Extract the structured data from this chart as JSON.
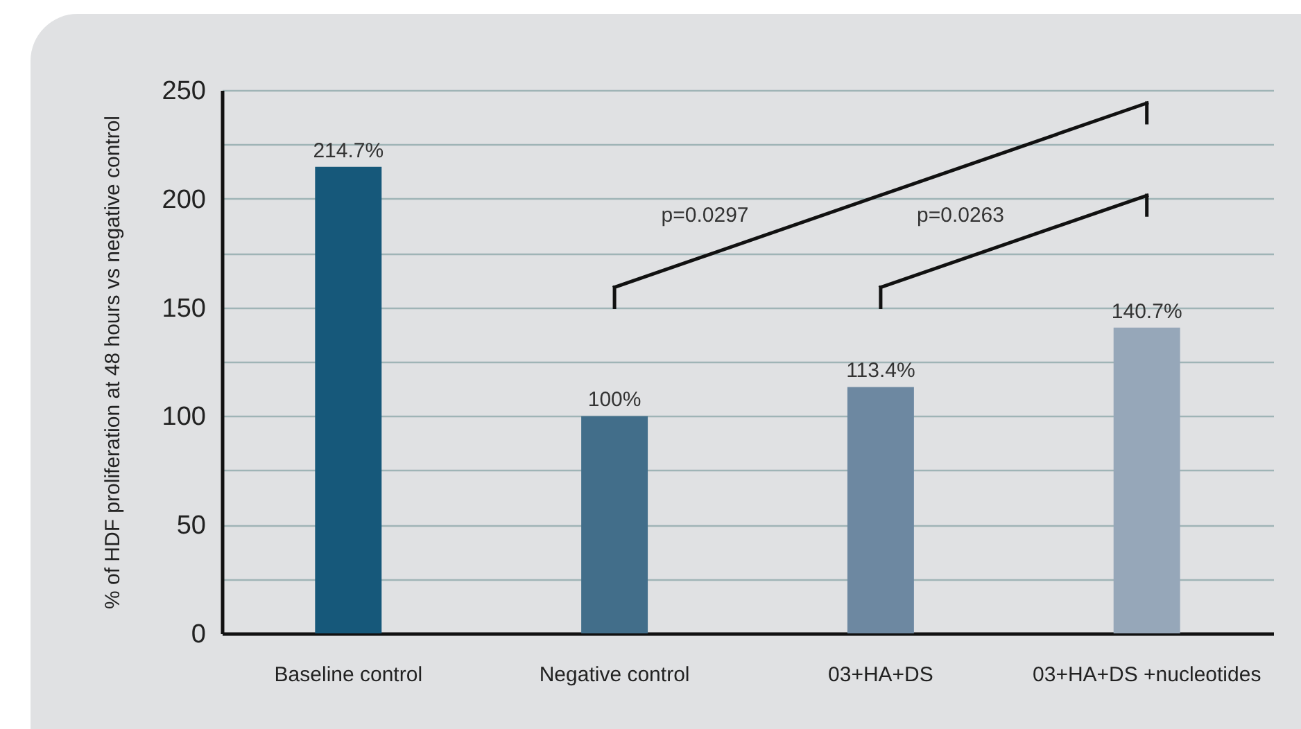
{
  "chart_data": {
    "type": "bar",
    "ylabel": "% of HDF proliferation at 48 hours vs negative control",
    "categories": [
      "Baseline control",
      "Negative control",
      "03+HA+DS",
      "03+HA+DS +nucleotides"
    ],
    "values": [
      214.7,
      100,
      113.4,
      140.7
    ],
    "colors": [
      "#16587a",
      "#426e8a",
      "#6d88a1",
      "#96a7b9"
    ],
    "value_labels": [
      "214.7%",
      "100%",
      "113.4%",
      "140.7%"
    ],
    "ylim": [
      0,
      250
    ],
    "yticks": [
      0,
      {
        "value": 25,
        "label": null
      },
      50,
      {
        "value": 75,
        "label": null
      },
      100,
      {
        "value": 125,
        "label": null
      },
      150,
      {
        "value": 175,
        "label": null
      },
      200,
      {
        "value": 225,
        "label": null
      },
      250
    ],
    "grid": true,
    "annotations": [
      "p=0.0297",
      "p=0.0263"
    ]
  }
}
